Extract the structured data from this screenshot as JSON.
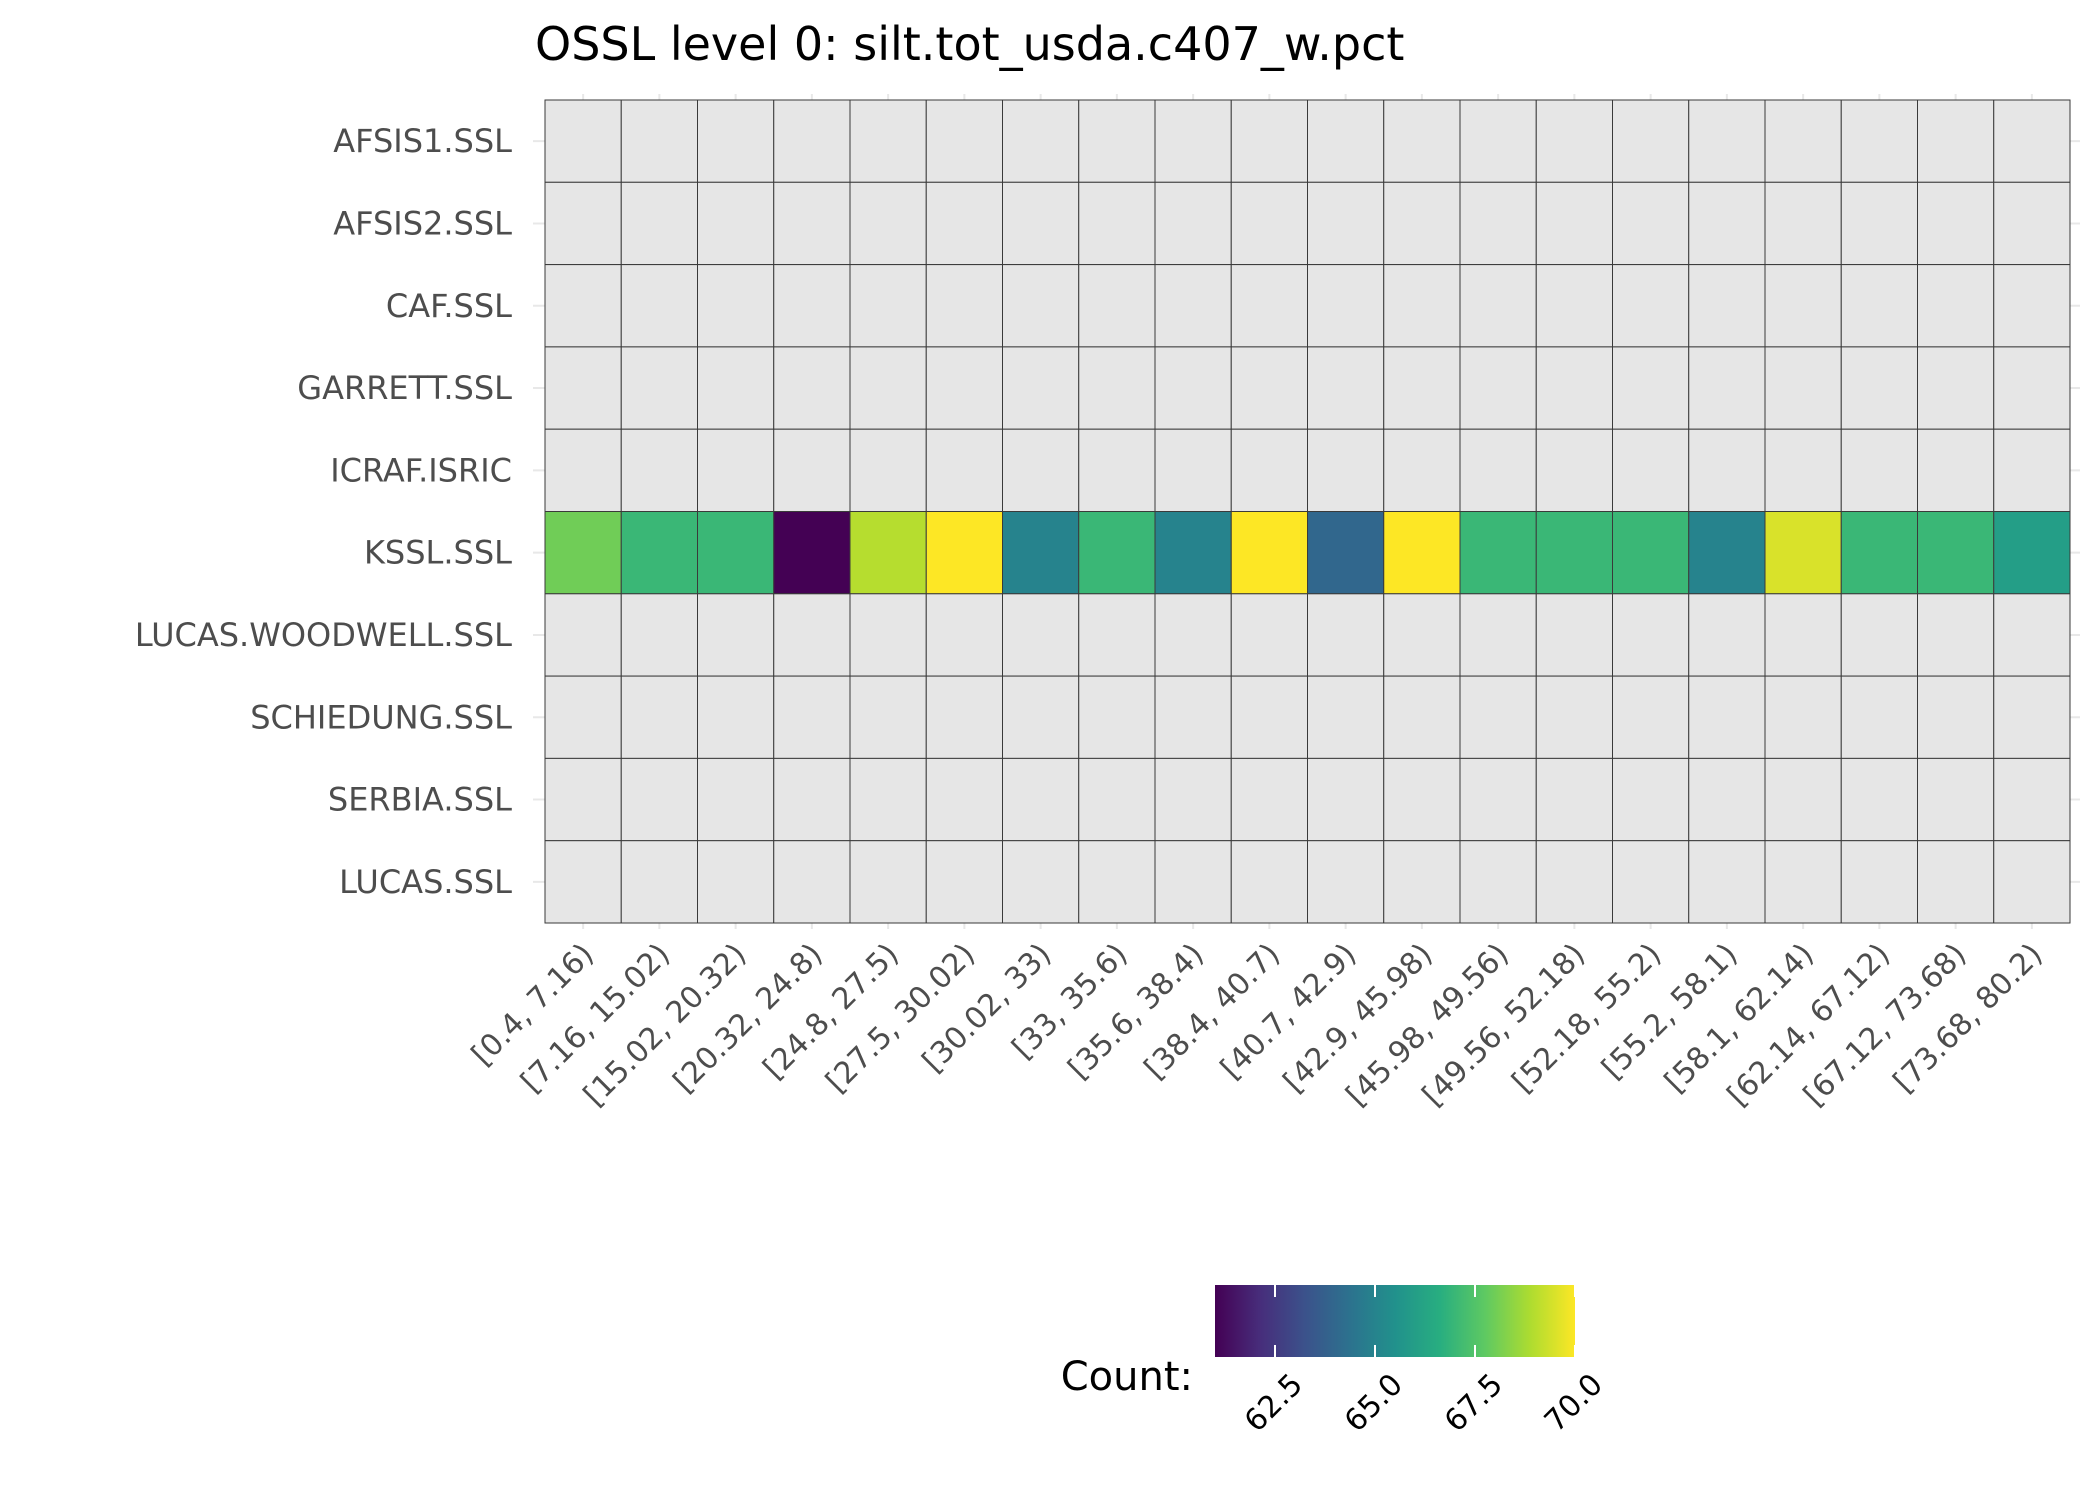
{
  "chart_data": {
    "type": "heatmap",
    "title": "OSSL level 0: silt.tot_usda.c407_w.pct",
    "xlabel": "",
    "ylabel": "",
    "x_categories": [
      "[0.4, 7.16)",
      "[7.16, 15.02)",
      "[15.02, 20.32)",
      "[20.32, 24.8)",
      "[24.8, 27.5)",
      "[27.5, 30.02)",
      "[30.02, 33)",
      "[33, 35.6)",
      "[35.6, 38.4)",
      "[38.4, 40.7)",
      "[40.7, 42.9)",
      "[42.9, 45.98)",
      "[45.98, 49.56)",
      "[49.56, 52.18)",
      "[52.18, 55.2)",
      "[55.2, 58.1)",
      "[58.1, 62.14)",
      "[62.14, 67.12)",
      "[67.12, 73.68)",
      "[73.68, 80.2)"
    ],
    "y_categories": [
      "AFSIS1.SSL",
      "AFSIS2.SSL",
      "CAF.SSL",
      "GARRETT.SSL",
      "ICRAF.ISRIC",
      "KSSL.SSL",
      "LUCAS.WOODWELL.SSL",
      "SCHIEDUNG.SSL",
      "SERBIA.SSL",
      "LUCAS.SSL"
    ],
    "rows": [
      {
        "name": "AFSIS1.SSL",
        "values": [
          null,
          null,
          null,
          null,
          null,
          null,
          null,
          null,
          null,
          null,
          null,
          null,
          null,
          null,
          null,
          null,
          null,
          null,
          null,
          null
        ]
      },
      {
        "name": "AFSIS2.SSL",
        "values": [
          null,
          null,
          null,
          null,
          null,
          null,
          null,
          null,
          null,
          null,
          null,
          null,
          null,
          null,
          null,
          null,
          null,
          null,
          null,
          null
        ]
      },
      {
        "name": "CAF.SSL",
        "values": [
          null,
          null,
          null,
          null,
          null,
          null,
          null,
          null,
          null,
          null,
          null,
          null,
          null,
          null,
          null,
          null,
          null,
          null,
          null,
          null
        ]
      },
      {
        "name": "GARRETT.SSL",
        "values": [
          null,
          null,
          null,
          null,
          null,
          null,
          null,
          null,
          null,
          null,
          null,
          null,
          null,
          null,
          null,
          null,
          null,
          null,
          null,
          null
        ]
      },
      {
        "name": "ICRAF.ISRIC",
        "values": [
          null,
          null,
          null,
          null,
          null,
          null,
          null,
          null,
          null,
          null,
          null,
          null,
          null,
          null,
          null,
          null,
          null,
          null,
          null,
          null
        ]
      },
      {
        "name": "KSSL.SSL",
        "values": [
          68,
          67,
          67,
          61,
          69,
          70,
          65,
          67,
          65,
          70,
          64,
          70,
          67,
          67,
          67,
          65,
          69.5,
          67,
          67,
          66
        ]
      },
      {
        "name": "LUCAS.WOODWELL.SSL",
        "values": [
          null,
          null,
          null,
          null,
          null,
          null,
          null,
          null,
          null,
          null,
          null,
          null,
          null,
          null,
          null,
          null,
          null,
          null,
          null,
          null
        ]
      },
      {
        "name": "SCHIEDUNG.SSL",
        "values": [
          null,
          null,
          null,
          null,
          null,
          null,
          null,
          null,
          null,
          null,
          null,
          null,
          null,
          null,
          null,
          null,
          null,
          null,
          null,
          null
        ]
      },
      {
        "name": "SERBIA.SSL",
        "values": [
          null,
          null,
          null,
          null,
          null,
          null,
          null,
          null,
          null,
          null,
          null,
          null,
          null,
          null,
          null,
          null,
          null,
          null,
          null,
          null
        ]
      },
      {
        "name": "LUCAS.SSL",
        "values": [
          null,
          null,
          null,
          null,
          null,
          null,
          null,
          null,
          null,
          null,
          null,
          null,
          null,
          null,
          null,
          null,
          null,
          null,
          null,
          null
        ]
      }
    ],
    "missing_color": "#e6e6e6",
    "colormap": "viridis",
    "legend": {
      "title": "Count:",
      "range": [
        61,
        70
      ],
      "ticks": [
        62.5,
        65.0,
        67.5,
        70.0
      ],
      "tick_labels": [
        "62.5",
        "65.0",
        "67.5",
        "70.0"
      ],
      "placement": "bottom"
    }
  }
}
